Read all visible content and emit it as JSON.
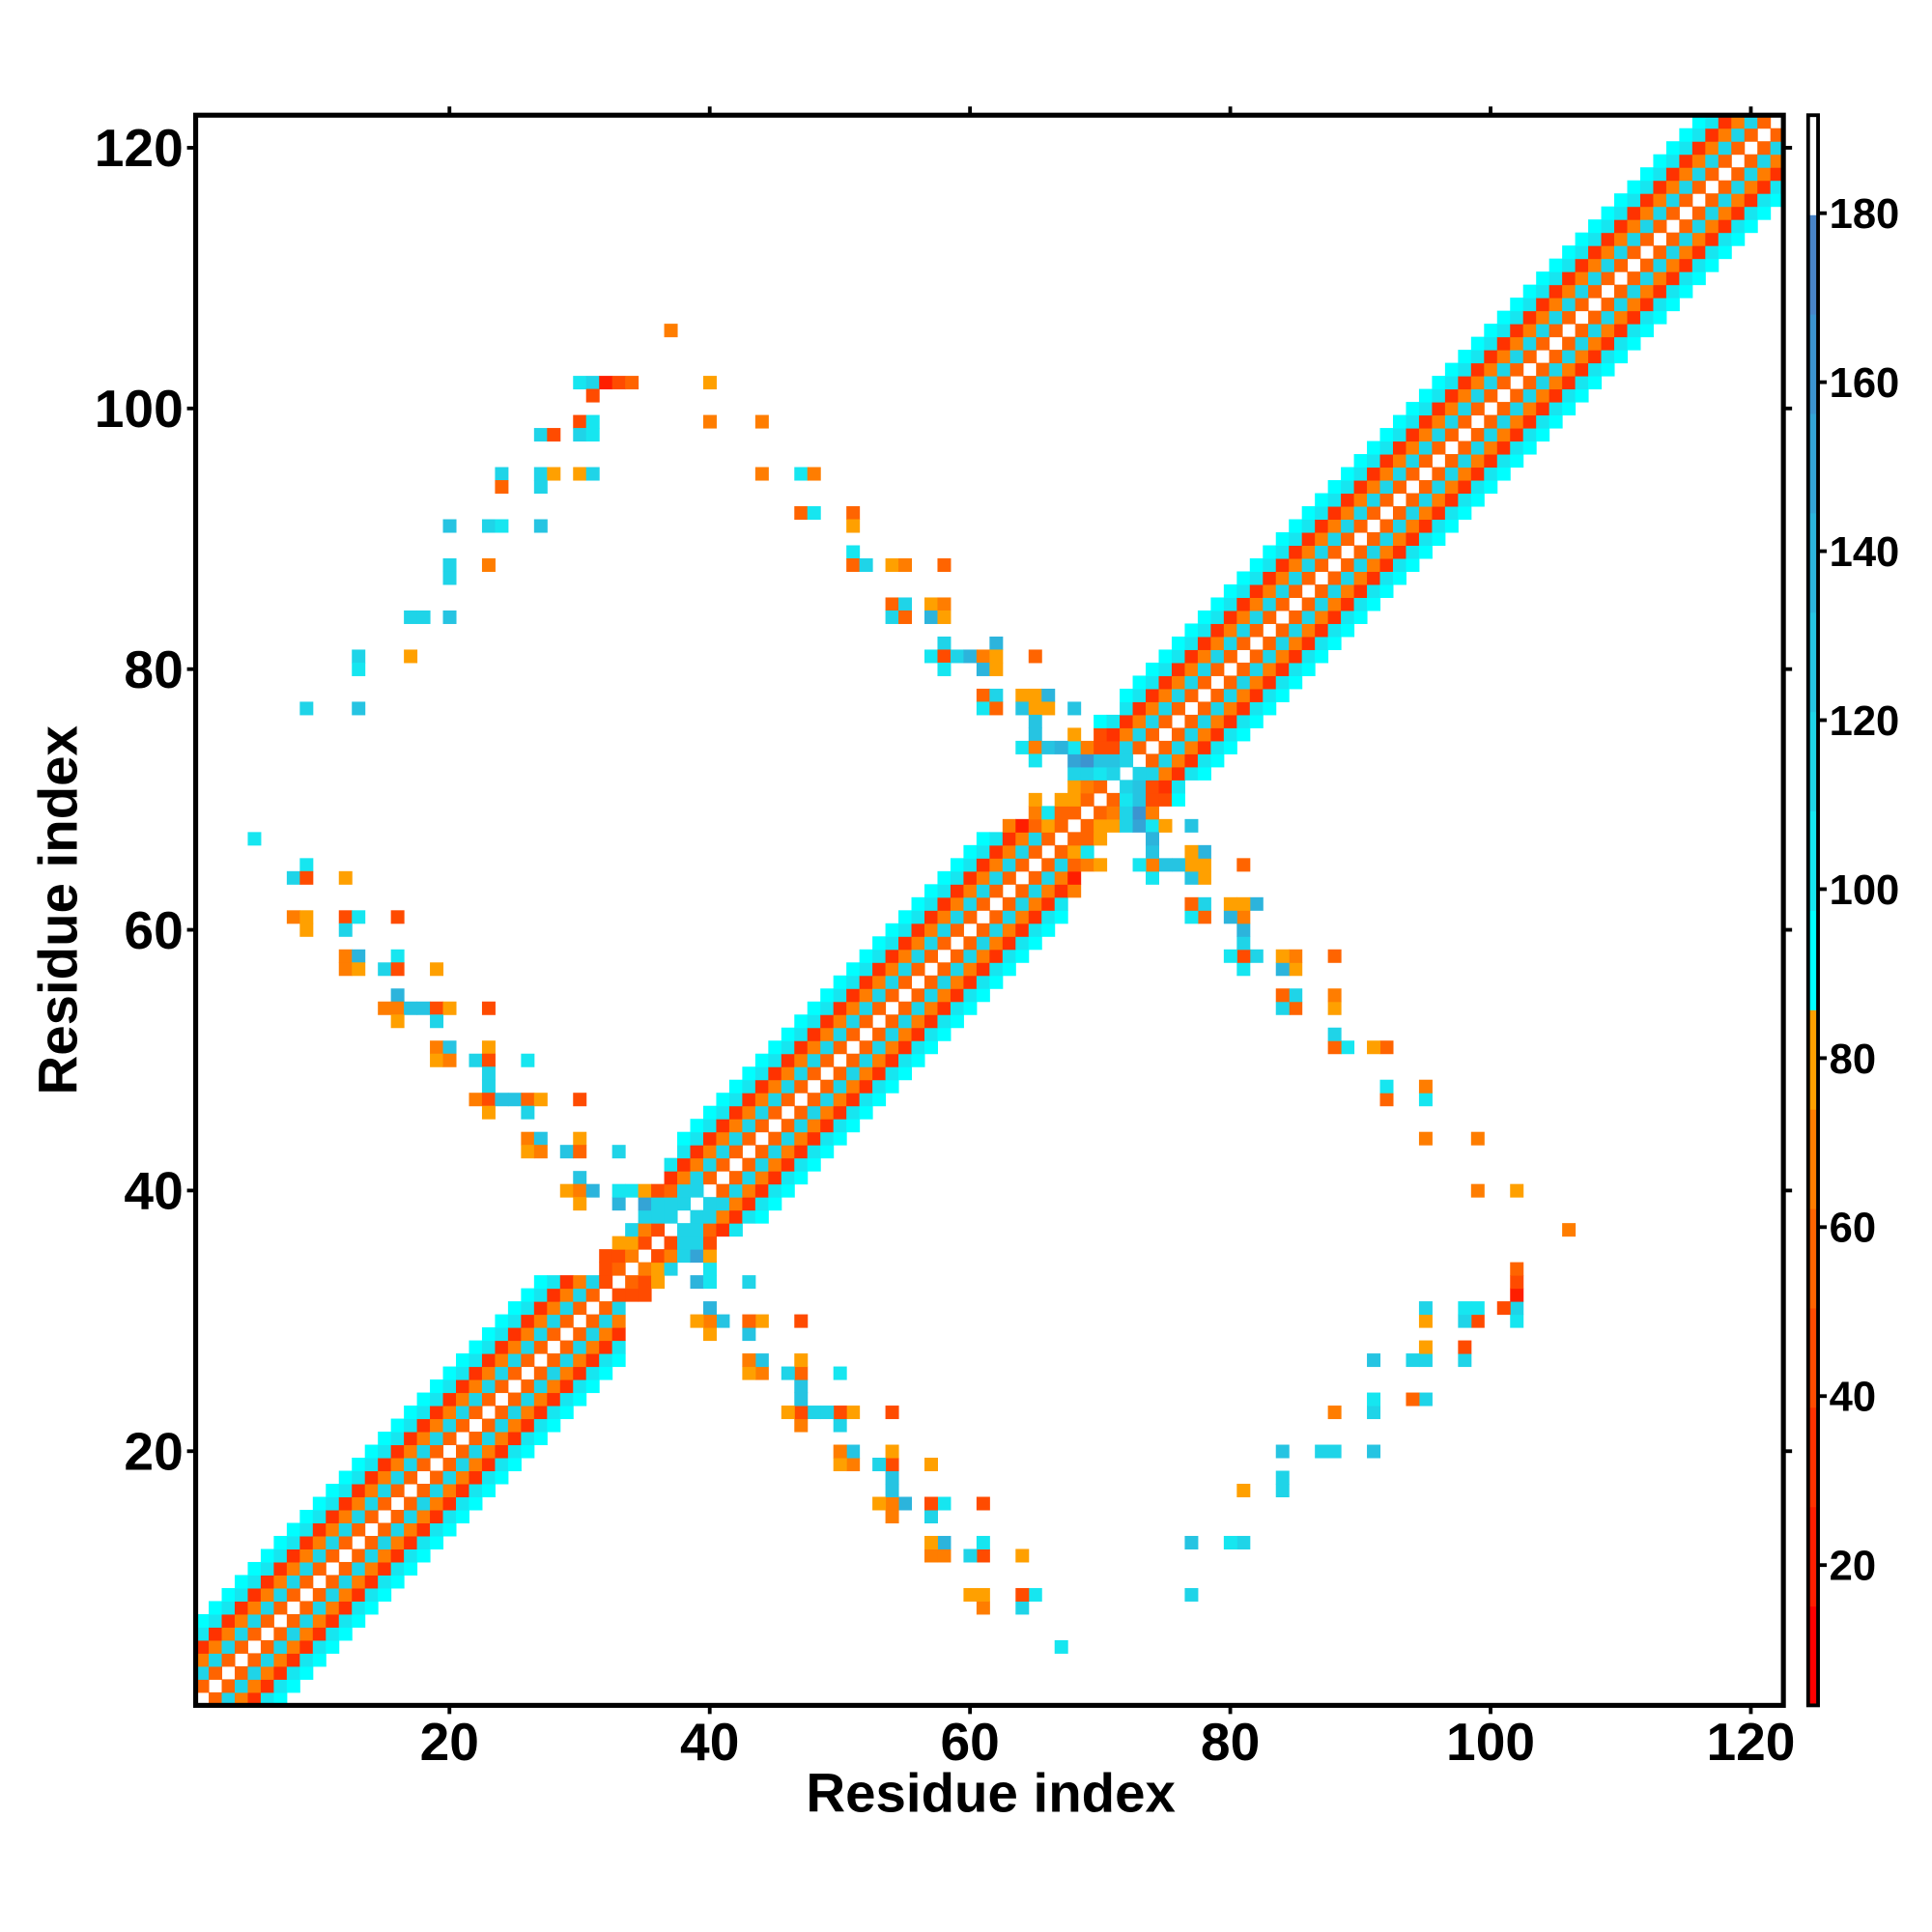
{
  "chart_data": {
    "type": "heatmap",
    "title": "",
    "xlabel": "Residue index",
    "ylabel": "Residue index",
    "n_residues": 122,
    "xlim": [
      0.5,
      122.5
    ],
    "ylim": [
      0.5,
      122.5
    ],
    "x_ticks": [
      "20",
      "40",
      "60",
      "80",
      "100",
      "120"
    ],
    "y_ticks": [
      "20",
      "40",
      "60",
      "80",
      "100",
      "120"
    ],
    "tick_values": [
      20,
      40,
      60,
      80,
      100,
      120
    ],
    "symmetric": true,
    "grid": false,
    "colorbar": {
      "position": "right",
      "clim": [
        3.4,
        191.6
      ],
      "ticks": [
        "20",
        "40",
        "60",
        "80",
        "100",
        "120",
        "140",
        "160",
        "180"
      ],
      "tick_values": [
        20,
        40,
        60,
        80,
        100,
        120,
        140,
        160,
        180
      ],
      "colormap": [
        "#ff0000",
        "#ff1e00",
        "#ff3200",
        "#ff4b00",
        "#ff6400",
        "#ff7d00",
        "#ffa000",
        "#00ffff",
        "#16e6f0",
        "#1fd4e8",
        "#26c4e2",
        "#2cb4dc",
        "#34a4d6",
        "#3c94d0",
        "#4884c8",
        "#ffffff"
      ]
    },
    "diagonal_band": {
      "offsets": [
        1,
        2,
        3,
        4,
        5,
        6
      ],
      "values": [
        58,
        118,
        64,
        28,
        105,
        95
      ]
    },
    "band_overrides": [
      [
        33,
        40,
        100
      ],
      [
        34,
        40,
        100
      ],
      [
        35,
        40,
        75
      ],
      [
        36,
        40,
        50
      ],
      [
        37,
        40,
        60
      ],
      [
        38,
        40,
        118
      ],
      [
        39,
        40,
        118
      ],
      [
        33,
        39,
        135
      ],
      [
        34,
        39,
        0
      ],
      [
        35,
        39,
        155
      ],
      [
        36,
        39,
        120
      ],
      [
        37,
        39,
        120
      ],
      [
        38,
        39,
        120
      ],
      [
        32,
        38,
        0
      ],
      [
        33,
        38,
        0
      ],
      [
        34,
        38,
        0
      ],
      [
        35,
        38,
        120
      ],
      [
        36,
        38,
        120
      ],
      [
        37,
        38,
        120
      ],
      [
        31,
        37,
        0
      ],
      [
        32,
        37,
        0
      ],
      [
        33,
        37,
        0
      ],
      [
        34,
        37,
        115
      ],
      [
        35,
        37,
        65
      ],
      [
        36,
        37,
        50
      ],
      [
        30,
        36,
        0
      ],
      [
        31,
        36,
        0
      ],
      [
        32,
        36,
        0
      ],
      [
        33,
        36,
        75
      ],
      [
        34,
        36,
        75
      ],
      [
        35,
        36,
        50
      ],
      [
        29,
        35,
        0
      ],
      [
        30,
        35,
        0
      ],
      [
        31,
        35,
        0
      ],
      [
        32,
        35,
        50
      ],
      [
        33,
        35,
        50
      ],
      [
        34,
        35,
        70
      ],
      [
        28,
        34,
        0
      ],
      [
        29,
        34,
        0
      ],
      [
        30,
        34,
        0
      ],
      [
        31,
        34,
        0
      ],
      [
        32,
        34,
        50
      ],
      [
        33,
        34,
        55
      ],
      [
        32,
        33,
        50
      ],
      [
        35,
        41,
        0
      ],
      [
        36,
        41,
        0
      ],
      [
        36,
        42,
        0
      ],
      [
        37,
        42,
        100
      ],
      [
        37,
        43,
        0
      ],
      [
        38,
        43,
        100
      ],
      [
        71,
        77,
        0
      ],
      [
        68,
        77,
        130
      ],
      [
        68,
        75,
        75
      ],
      [
        69,
        75,
        0
      ],
      [
        70,
        75,
        50
      ],
      [
        68,
        74,
        100
      ],
      [
        69,
        74,
        70
      ],
      [
        70,
        74,
        50
      ],
      [
        71,
        74,
        50
      ],
      [
        72,
        74,
        120
      ],
      [
        67,
        73,
        0
      ],
      [
        68,
        73,
        150
      ],
      [
        69,
        73,
        160
      ],
      [
        70,
        73,
        130
      ],
      [
        71,
        73,
        125
      ],
      [
        72,
        73,
        118
      ],
      [
        66,
        72,
        0
      ],
      [
        67,
        72,
        0
      ],
      [
        68,
        72,
        118
      ],
      [
        69,
        72,
        118
      ],
      [
        70,
        72,
        100
      ],
      [
        71,
        72,
        115
      ],
      [
        65,
        71,
        0
      ],
      [
        66,
        71,
        0
      ],
      [
        67,
        71,
        0
      ],
      [
        68,
        71,
        75
      ],
      [
        69,
        71,
        65
      ],
      [
        70,
        71,
        55
      ],
      [
        64,
        70,
        0
      ],
      [
        66,
        70,
        0
      ],
      [
        68,
        70,
        75
      ],
      [
        69,
        70,
        55
      ],
      [
        63,
        69,
        0
      ],
      [
        64,
        69,
        0
      ],
      [
        65,
        69,
        65
      ],
      [
        66,
        69,
        100
      ],
      [
        67,
        69,
        60
      ],
      [
        68,
        69,
        60
      ],
      [
        62,
        68,
        0
      ],
      [
        63,
        68,
        65
      ],
      [
        64,
        68,
        25
      ],
      [
        65,
        68,
        60
      ],
      [
        66,
        68,
        75
      ],
      [
        67,
        68,
        60
      ]
    ],
    "contacts": [
      [
        37,
        106,
        70
      ],
      [
        30,
        102,
        100
      ],
      [
        31,
        102,
        115
      ],
      [
        32,
        102,
        25
      ],
      [
        33,
        102,
        42
      ],
      [
        34,
        102,
        60
      ],
      [
        40,
        102,
        75
      ],
      [
        31,
        101,
        50
      ],
      [
        30,
        99,
        45
      ],
      [
        31,
        99,
        105
      ],
      [
        40,
        99,
        68
      ],
      [
        44,
        99,
        65
      ],
      [
        27,
        98,
        115
      ],
      [
        28,
        98,
        45
      ],
      [
        30,
        98,
        118
      ],
      [
        31,
        98,
        100
      ],
      [
        24,
        95,
        120
      ],
      [
        27,
        95,
        120
      ],
      [
        28,
        95,
        75
      ],
      [
        30,
        95,
        75
      ],
      [
        31,
        95,
        120
      ],
      [
        44,
        95,
        65
      ],
      [
        47,
        95,
        100
      ],
      [
        48,
        95,
        65
      ],
      [
        24,
        94,
        55
      ],
      [
        27,
        94,
        110
      ],
      [
        47,
        92,
        55
      ],
      [
        48,
        92,
        100
      ],
      [
        51,
        92,
        60
      ],
      [
        20,
        91,
        130
      ],
      [
        23,
        91,
        118
      ],
      [
        24,
        91,
        100
      ],
      [
        27,
        91,
        128
      ],
      [
        51,
        91,
        75
      ],
      [
        51,
        89,
        100
      ],
      [
        20,
        88,
        118
      ],
      [
        23,
        88,
        65
      ],
      [
        51,
        88,
        55
      ],
      [
        52,
        88,
        115
      ],
      [
        54,
        88,
        75
      ],
      [
        55,
        88,
        70
      ],
      [
        58,
        88,
        55
      ],
      [
        20,
        87,
        115
      ],
      [
        54,
        85,
        55
      ],
      [
        55,
        85,
        115
      ],
      [
        57,
        85,
        75
      ],
      [
        58,
        85,
        70
      ],
      [
        17,
        84,
        118
      ],
      [
        18,
        84,
        110
      ],
      [
        20,
        84,
        130
      ],
      [
        54,
        84,
        115
      ],
      [
        55,
        84,
        55
      ],
      [
        57,
        84,
        135
      ],
      [
        58,
        84,
        75
      ],
      [
        58,
        82,
        115
      ],
      [
        62,
        82,
        140
      ],
      [
        13,
        81,
        120
      ],
      [
        17,
        81,
        75
      ],
      [
        57,
        81,
        100
      ],
      [
        58,
        81,
        50
      ],
      [
        59,
        81,
        118
      ],
      [
        60,
        81,
        135
      ],
      [
        61,
        81,
        65
      ],
      [
        62,
        81,
        75
      ],
      [
        65,
        81,
        55
      ],
      [
        13,
        80,
        100
      ],
      [
        58,
        80,
        100
      ],
      [
        61,
        80,
        135
      ],
      [
        62,
        80,
        75
      ],
      [
        61,
        78,
        55
      ],
      [
        62,
        78,
        115
      ],
      [
        64,
        78,
        75
      ],
      [
        65,
        78,
        75
      ],
      [
        66,
        78,
        135
      ],
      [
        9,
        77,
        120
      ],
      [
        13,
        77,
        128
      ],
      [
        61,
        77,
        100
      ],
      [
        62,
        77,
        55
      ],
      [
        64,
        77,
        130
      ],
      [
        65,
        77,
        75
      ],
      [
        66,
        77,
        75
      ],
      [
        65,
        76,
        130
      ],
      [
        65,
        75,
        125
      ],
      [
        64,
        74,
        100
      ],
      [
        65,
        74,
        65
      ],
      [
        66,
        74,
        125
      ],
      [
        67,
        74,
        135
      ],
      [
        65,
        73,
        100
      ],
      [
        65,
        70,
        75
      ],
      [
        67,
        70,
        75
      ],
      [
        5,
        67,
        100
      ],
      [
        9,
        65,
        100
      ],
      [
        8,
        64,
        115
      ],
      [
        9,
        64,
        45
      ],
      [
        12,
        64,
        75
      ],
      [
        8,
        61,
        65
      ],
      [
        9,
        61,
        75
      ],
      [
        12,
        61,
        45
      ],
      [
        13,
        61,
        100
      ],
      [
        16,
        61,
        45
      ],
      [
        9,
        60,
        75
      ],
      [
        12,
        60,
        118
      ],
      [
        12,
        58,
        65
      ],
      [
        13,
        58,
        135
      ],
      [
        16,
        58,
        100
      ],
      [
        12,
        57,
        65
      ],
      [
        13,
        57,
        75
      ],
      [
        15,
        57,
        118
      ],
      [
        16,
        57,
        45
      ],
      [
        19,
        57,
        75
      ],
      [
        16,
        55,
        135
      ],
      [
        15,
        54,
        65
      ],
      [
        16,
        54,
        65
      ],
      [
        17,
        54,
        125
      ],
      [
        18,
        54,
        125
      ],
      [
        19,
        54,
        50
      ],
      [
        20,
        54,
        75
      ],
      [
        23,
        54,
        45
      ],
      [
        16,
        53,
        75
      ],
      [
        19,
        53,
        118
      ],
      [
        19,
        51,
        65
      ],
      [
        20,
        51,
        130
      ],
      [
        23,
        51,
        75
      ],
      [
        19,
        50,
        75
      ],
      [
        20,
        50,
        65
      ],
      [
        22,
        50,
        120
      ],
      [
        23,
        50,
        50
      ],
      [
        26,
        50,
        100
      ],
      [
        23,
        49,
        120
      ],
      [
        23,
        48,
        120
      ],
      [
        22,
        47,
        65
      ],
      [
        23,
        47,
        50
      ],
      [
        24,
        47,
        125
      ],
      [
        25,
        47,
        125
      ],
      [
        26,
        47,
        55
      ],
      [
        27,
        47,
        75
      ],
      [
        30,
        47,
        45
      ],
      [
        23,
        46,
        75
      ],
      [
        26,
        46,
        118
      ],
      [
        26,
        44,
        65
      ],
      [
        27,
        44,
        130
      ],
      [
        30,
        44,
        75
      ],
      [
        26,
        43,
        75
      ],
      [
        27,
        43,
        65
      ],
      [
        29,
        43,
        125
      ],
      [
        30,
        43,
        55
      ],
      [
        33,
        43,
        118
      ],
      [
        30,
        41,
        130
      ],
      [
        29,
        40,
        75
      ],
      [
        30,
        40,
        65
      ],
      [
        31,
        40,
        135
      ],
      [
        30,
        39,
        75
      ]
    ]
  }
}
